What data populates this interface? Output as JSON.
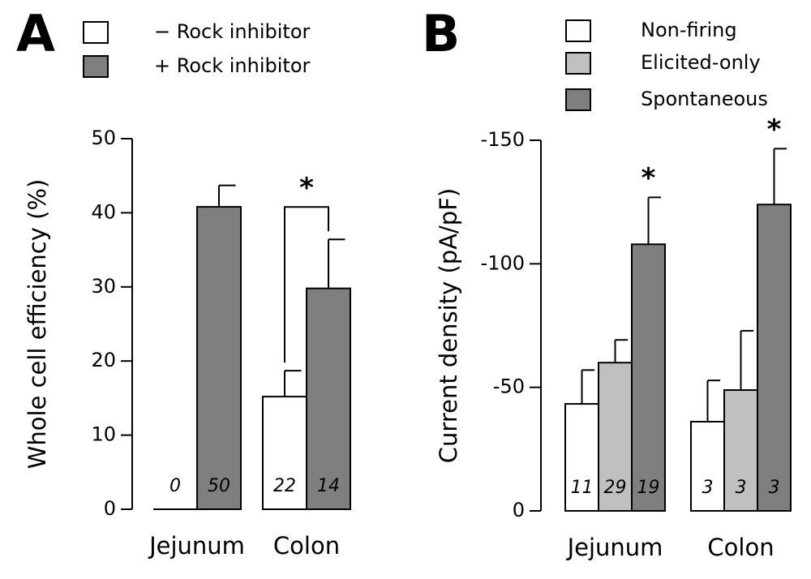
{
  "chart_data": [
    {
      "type": "bar",
      "panel": "A",
      "y_label": "Whole cell efficiency (%)",
      "categories": [
        "Jejunum",
        "Colon"
      ],
      "ylim": [
        0,
        50
      ],
      "yticks": [
        0,
        10,
        20,
        30,
        40,
        50
      ],
      "series": [
        {
          "name": "− Rock inhibitor",
          "color": "#ffffff",
          "values": [
            0,
            15.2
          ],
          "errors": [
            null,
            3.5
          ],
          "n": [
            0,
            22
          ]
        },
        {
          "name": "+ Rock inhibitor",
          "color": "#7f7f7f",
          "values": [
            40.8,
            29.8
          ],
          "errors": [
            2.9,
            6.6
          ],
          "n": [
            50,
            14
          ]
        }
      ],
      "annotation": "*"
    },
    {
      "type": "bar",
      "panel": "B",
      "y_label": "Current density (pA/pF)",
      "categories": [
        "Jejunum",
        "Colon"
      ],
      "ylim": [
        0,
        -150
      ],
      "yticks": [
        0,
        -50,
        -100,
        -150
      ],
      "series": [
        {
          "name": "Non-firing",
          "color": "#ffffff",
          "values": [
            -43.3,
            -36.1
          ],
          "errors": [
            13.7,
            16.7
          ],
          "n": [
            11,
            3
          ]
        },
        {
          "name": "Elicited-only",
          "color": "#c0c0c0",
          "values": [
            -60.0,
            -48.9
          ],
          "errors": [
            9.2,
            24
          ],
          "n": [
            29,
            3
          ]
        },
        {
          "name": "Spontaneous",
          "color": "#7f7f7f",
          "values": [
            -107.9,
            -124
          ],
          "errors": [
            19,
            22.6
          ],
          "n": [
            19,
            3
          ],
          "sig": [
            "*",
            "*"
          ]
        }
      ]
    }
  ]
}
